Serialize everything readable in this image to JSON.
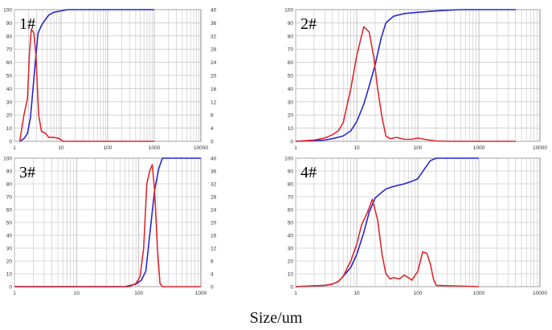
{
  "figure": {
    "xlabel": "Size/um"
  },
  "colors": {
    "cumulative": "#2727d6",
    "distribution": "#e0282e",
    "grid": "#b8b8b8",
    "frame": "#8a8a8a",
    "tick_text": "#333333"
  },
  "chart_data": [
    {
      "type": "line",
      "title": "1#",
      "x_scale": "log",
      "xlim": [
        1,
        10000
      ],
      "x_ticks": [
        1,
        10,
        100,
        1000,
        10000
      ],
      "x_tick_labels": [
        "1",
        "10",
        "100",
        "1000",
        "10000"
      ],
      "ylim_left": [
        0,
        100
      ],
      "y_ticks_left": [
        "0",
        "10",
        "20",
        "30",
        "40",
        "50",
        "60",
        "70",
        "80",
        "90",
        "100"
      ],
      "ylim_right": [
        0,
        40
      ],
      "y_ticks_right": [
        "0",
        "4",
        "8",
        "12",
        "16",
        "20",
        "24",
        "28",
        "32",
        "36",
        "40"
      ],
      "grid": true,
      "series": [
        {
          "role": "cumulative",
          "axis": "left",
          "x": [
            1.3,
            1.6,
            1.9,
            2.2,
            2.5,
            2.8,
            3.2,
            3.8,
            4.5,
            5.5,
            7,
            10,
            14,
            1000
          ],
          "y": [
            0,
            2,
            6,
            18,
            40,
            60,
            82,
            88,
            92,
            96,
            98,
            99,
            100,
            100
          ]
        },
        {
          "role": "distribution",
          "axis": "right",
          "x": [
            1.3,
            1.6,
            1.9,
            2.1,
            2.3,
            2.6,
            2.9,
            3.3,
            3.8,
            4.5,
            5.5,
            7,
            9,
            11,
            14,
            1000
          ],
          "y": [
            0,
            8,
            13,
            27,
            34,
            33,
            26,
            8,
            3,
            2.6,
            1.2,
            1.2,
            0.9,
            0,
            0,
            0
          ]
        }
      ]
    },
    {
      "type": "line",
      "title": "2#",
      "x_scale": "log",
      "xlim": [
        1,
        10000
      ],
      "x_ticks": [
        1,
        10,
        100,
        1000,
        10000
      ],
      "x_tick_labels": [
        "1",
        "10",
        "100",
        "1000",
        "10000"
      ],
      "ylim_left": [
        0,
        100
      ],
      "y_ticks_left": [
        "0",
        "10",
        "20",
        "30",
        "40",
        "50",
        "60",
        "70",
        "80",
        "90",
        "100"
      ],
      "grid": true,
      "series": [
        {
          "role": "cumulative",
          "axis": "left",
          "x": [
            1,
            2,
            3,
            4,
            6,
            8,
            10,
            13,
            16,
            20,
            25,
            30,
            40,
            60,
            100,
            200,
            500,
            4000
          ],
          "y": [
            0,
            0.5,
            1,
            2,
            4,
            8,
            15,
            28,
            42,
            58,
            78,
            90,
            95,
            97,
            98,
            99,
            100,
            100
          ]
        },
        {
          "role": "distribution",
          "axis": "left",
          "x": [
            1,
            2,
            3,
            4,
            5,
            6,
            8,
            10,
            13,
            16,
            19,
            22,
            26,
            30,
            35,
            45,
            60,
            80,
            100,
            140,
            200,
            300,
            4000
          ],
          "y": [
            0,
            1,
            2.5,
            5,
            8,
            14,
            40,
            65,
            87,
            83,
            64,
            40,
            18,
            4,
            2,
            3,
            1.5,
            1.5,
            2.5,
            1.2,
            0.3,
            0,
            0
          ]
        }
      ]
    },
    {
      "type": "line",
      "title": "3#",
      "x_scale": "log",
      "xlim": [
        1,
        1000
      ],
      "x_ticks": [
        1,
        10,
        100,
        1000
      ],
      "x_tick_labels": [
        "1",
        "10",
        "100",
        "1000"
      ],
      "ylim_left": [
        0,
        100
      ],
      "y_ticks_left": [
        "0",
        "10",
        "20",
        "30",
        "40",
        "50",
        "60",
        "70",
        "80",
        "90",
        "100"
      ],
      "ylim_right": [
        0,
        40
      ],
      "y_ticks_right": [
        "0",
        "4",
        "8",
        "12",
        "16",
        "20",
        "24",
        "28",
        "32",
        "36",
        "40"
      ],
      "grid": true,
      "series": [
        {
          "role": "cumulative",
          "axis": "left",
          "x": [
            1,
            60,
            90,
            110,
            130,
            150,
            180,
            210,
            240,
            1000
          ],
          "y": [
            0,
            0,
            2,
            5,
            12,
            40,
            75,
            92,
            100,
            100
          ]
        },
        {
          "role": "distribution",
          "axis": "right",
          "x": [
            1,
            70,
            90,
            105,
            120,
            135,
            150,
            165,
            180,
            200,
            220,
            240,
            1000
          ],
          "y": [
            0,
            0,
            1,
            3,
            12,
            32,
            36,
            38,
            30,
            12,
            1,
            0,
            0
          ]
        }
      ]
    },
    {
      "type": "line",
      "title": "4#",
      "x_scale": "log",
      "xlim": [
        1,
        10000
      ],
      "x_ticks": [
        1,
        10,
        100,
        1000,
        10000
      ],
      "x_tick_labels": [
        "1",
        "10",
        "100",
        "1000",
        "10000"
      ],
      "ylim_left": [
        0,
        100
      ],
      "y_ticks_left": [
        "0",
        "10",
        "20",
        "30",
        "40",
        "50",
        "60",
        "70",
        "80",
        "90",
        "100"
      ],
      "grid": true,
      "series": [
        {
          "role": "cumulative",
          "axis": "left",
          "x": [
            1,
            3,
            4,
            5,
            6,
            8,
            10,
            13,
            16,
            20,
            25,
            30,
            40,
            60,
            80,
            100,
            130,
            160,
            200,
            1000
          ],
          "y": [
            0,
            1,
            2,
            4,
            8,
            15,
            25,
            42,
            58,
            69,
            73,
            76,
            78,
            80,
            82,
            84,
            92,
            98,
            100,
            100
          ]
        },
        {
          "role": "distribution",
          "axis": "left",
          "x": [
            1,
            3,
            4,
            5,
            6,
            8,
            10,
            12,
            15,
            18,
            22,
            26,
            30,
            35,
            40,
            50,
            60,
            70,
            80,
            100,
            120,
            140,
            160,
            180,
            200,
            1000
          ],
          "y": [
            0,
            1,
            2,
            4,
            8,
            20,
            33,
            48,
            58,
            68,
            52,
            25,
            10,
            6,
            7,
            6,
            9,
            7,
            5,
            12,
            27,
            26,
            18,
            6,
            1,
            0
          ]
        }
      ]
    }
  ]
}
